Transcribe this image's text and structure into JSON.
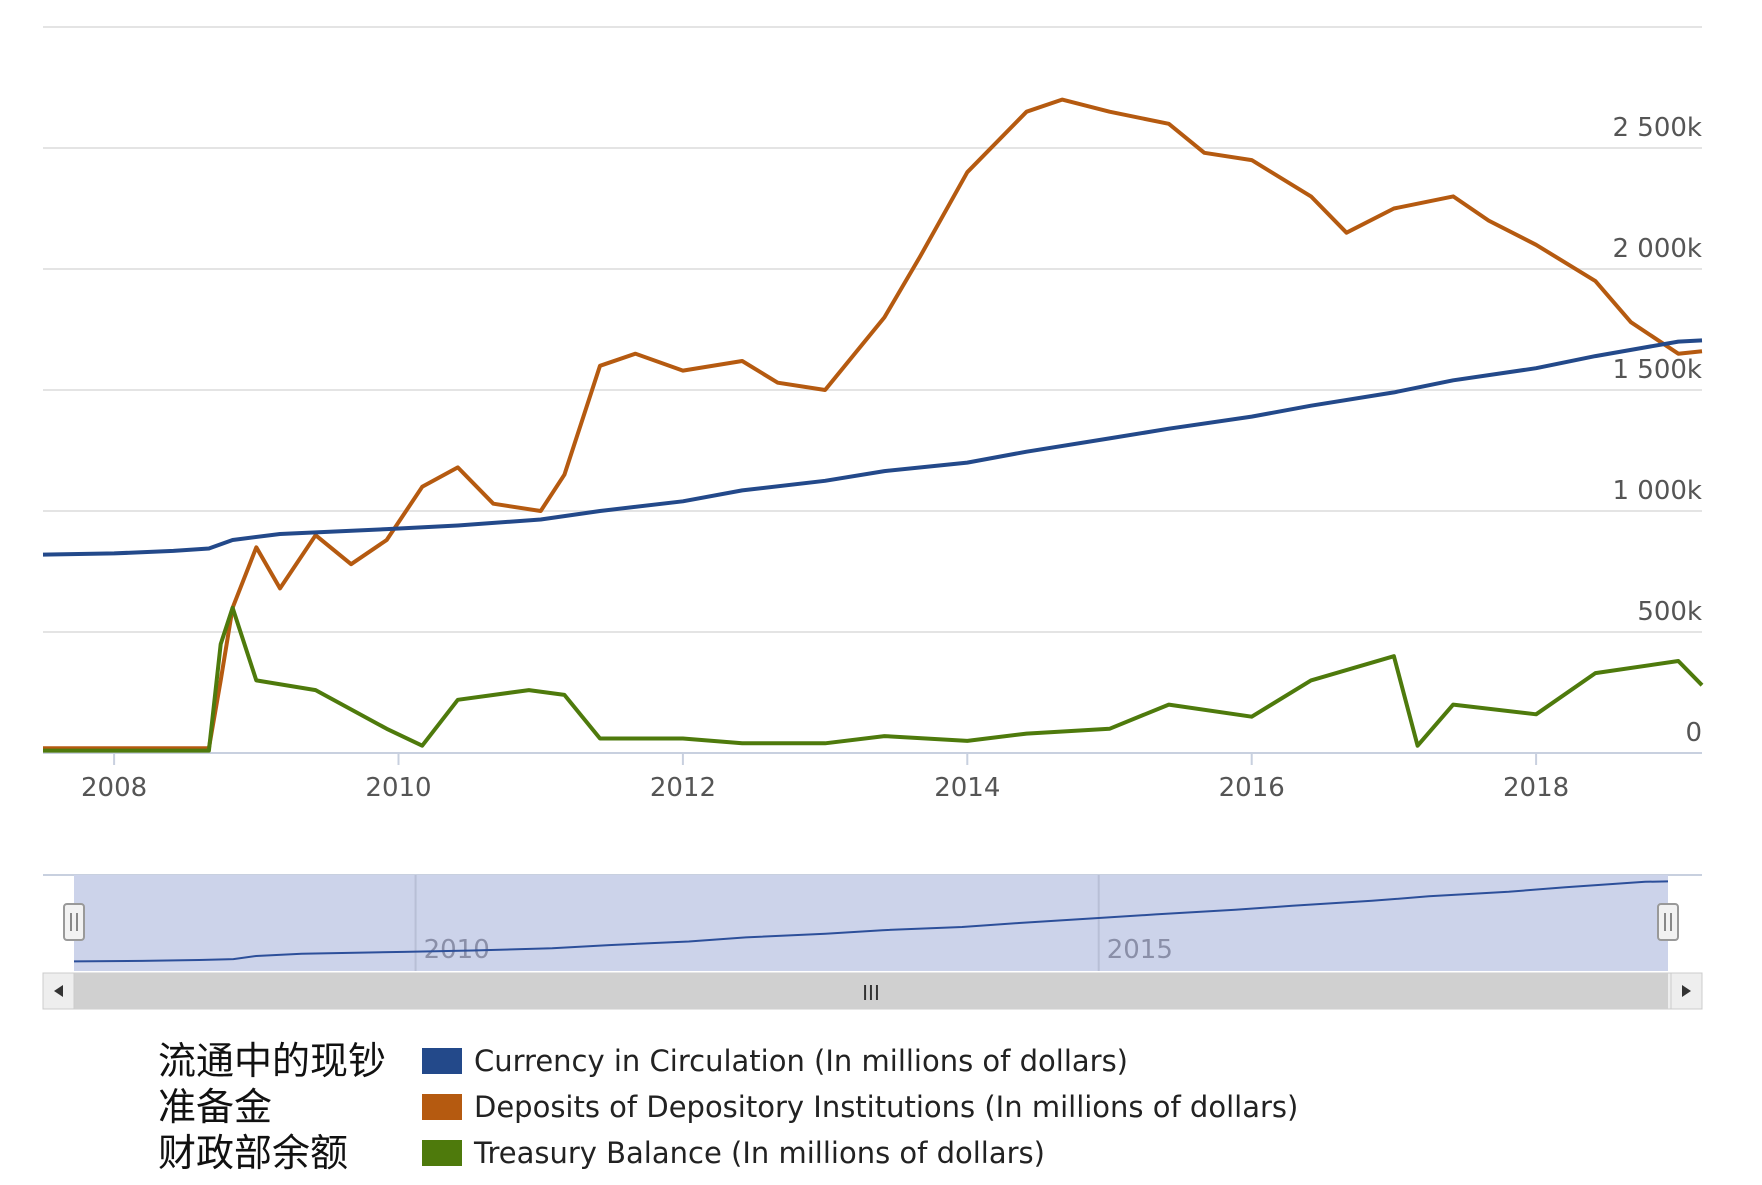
{
  "chart_data": {
    "type": "line",
    "x_range": [
      "2007-07",
      "2019-03"
    ],
    "x_ticks": [
      "2008",
      "2010",
      "2012",
      "2014",
      "2016",
      "2018"
    ],
    "y_ticks": [
      "0",
      "500k",
      "1 000k",
      "1 500k",
      "2 000k",
      "2 500k"
    ],
    "ylim": [
      0,
      3000000
    ],
    "grid": true,
    "series": [
      {
        "name": "Currency in Circulation (In millions of dollars)",
        "name_cn": "流通中的现钞",
        "color": "#23498a",
        "points": [
          [
            "2007-07",
            820000
          ],
          [
            "2008-01",
            825000
          ],
          [
            "2008-06",
            835000
          ],
          [
            "2008-09",
            845000
          ],
          [
            "2008-11",
            880000
          ],
          [
            "2009-03",
            905000
          ],
          [
            "2009-12",
            925000
          ],
          [
            "2010-06",
            940000
          ],
          [
            "2011-01",
            965000
          ],
          [
            "2011-06",
            1000000
          ],
          [
            "2012-01",
            1040000
          ],
          [
            "2012-06",
            1085000
          ],
          [
            "2013-01",
            1125000
          ],
          [
            "2013-06",
            1165000
          ],
          [
            "2014-01",
            1200000
          ],
          [
            "2014-06",
            1245000
          ],
          [
            "2015-01",
            1300000
          ],
          [
            "2015-06",
            1340000
          ],
          [
            "2016-01",
            1390000
          ],
          [
            "2016-06",
            1435000
          ],
          [
            "2017-01",
            1490000
          ],
          [
            "2017-06",
            1540000
          ],
          [
            "2018-01",
            1590000
          ],
          [
            "2018-06",
            1640000
          ],
          [
            "2019-01",
            1700000
          ],
          [
            "2019-03",
            1705000
          ]
        ]
      },
      {
        "name": "Deposits of Depository Institutions (In millions of dollars)",
        "name_cn": "准备金",
        "color": "#b55a10",
        "points": [
          [
            "2007-07",
            20000
          ],
          [
            "2008-06",
            20000
          ],
          [
            "2008-09",
            20000
          ],
          [
            "2008-10",
            300000
          ],
          [
            "2008-11",
            600000
          ],
          [
            "2009-01",
            850000
          ],
          [
            "2009-03",
            680000
          ],
          [
            "2009-06",
            900000
          ],
          [
            "2009-09",
            780000
          ],
          [
            "2009-12",
            880000
          ],
          [
            "2010-03",
            1100000
          ],
          [
            "2010-06",
            1180000
          ],
          [
            "2010-09",
            1030000
          ],
          [
            "2011-01",
            1000000
          ],
          [
            "2011-03",
            1150000
          ],
          [
            "2011-06",
            1600000
          ],
          [
            "2011-09",
            1650000
          ],
          [
            "2012-01",
            1580000
          ],
          [
            "2012-06",
            1620000
          ],
          [
            "2012-09",
            1530000
          ],
          [
            "2013-01",
            1500000
          ],
          [
            "2013-06",
            1800000
          ],
          [
            "2013-09",
            2050000
          ],
          [
            "2014-01",
            2400000
          ],
          [
            "2014-06",
            2650000
          ],
          [
            "2014-09",
            2700000
          ],
          [
            "2015-01",
            2650000
          ],
          [
            "2015-06",
            2600000
          ],
          [
            "2015-09",
            2480000
          ],
          [
            "2016-01",
            2450000
          ],
          [
            "2016-06",
            2300000
          ],
          [
            "2016-09",
            2150000
          ],
          [
            "2017-01",
            2250000
          ],
          [
            "2017-06",
            2300000
          ],
          [
            "2017-09",
            2200000
          ],
          [
            "2018-01",
            2100000
          ],
          [
            "2018-06",
            1950000
          ],
          [
            "2018-09",
            1780000
          ],
          [
            "2019-01",
            1650000
          ],
          [
            "2019-03",
            1660000
          ]
        ]
      },
      {
        "name": "Treasury Balance (In millions of dollars)",
        "name_cn": "财政部余额",
        "color": "#4e7a0c",
        "points": [
          [
            "2007-07",
            10000
          ],
          [
            "2008-09",
            10000
          ],
          [
            "2008-10",
            450000
          ],
          [
            "2008-11",
            600000
          ],
          [
            "2009-01",
            300000
          ],
          [
            "2009-06",
            260000
          ],
          [
            "2009-12",
            100000
          ],
          [
            "2010-03",
            30000
          ],
          [
            "2010-06",
            220000
          ],
          [
            "2010-12",
            260000
          ],
          [
            "2011-03",
            240000
          ],
          [
            "2011-06",
            60000
          ],
          [
            "2012-01",
            60000
          ],
          [
            "2012-06",
            40000
          ],
          [
            "2013-01",
            40000
          ],
          [
            "2013-06",
            70000
          ],
          [
            "2014-01",
            50000
          ],
          [
            "2014-06",
            80000
          ],
          [
            "2015-01",
            100000
          ],
          [
            "2015-06",
            200000
          ],
          [
            "2016-01",
            150000
          ],
          [
            "2016-06",
            300000
          ],
          [
            "2017-01",
            400000
          ],
          [
            "2017-03",
            30000
          ],
          [
            "2017-06",
            200000
          ],
          [
            "2018-01",
            160000
          ],
          [
            "2018-06",
            330000
          ],
          [
            "2019-01",
            380000
          ],
          [
            "2019-03",
            280000
          ]
        ]
      }
    ]
  },
  "navigator": {
    "ticks": [
      "2010",
      "2015"
    ]
  },
  "scrollbar": {
    "grip": "III",
    "left_arrow_icon": "arrow-left",
    "right_arrow_icon": "arrow-right"
  }
}
